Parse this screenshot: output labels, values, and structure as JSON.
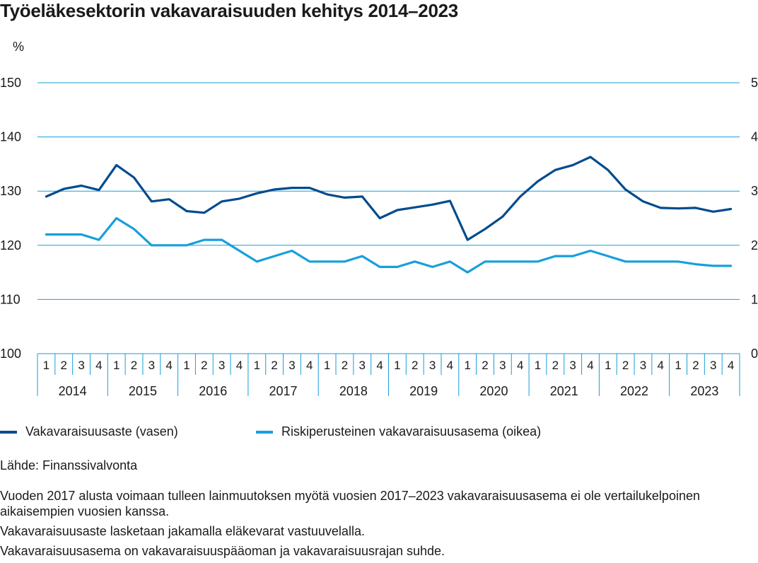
{
  "title": "Työeläkesektorin vakavaraisuuden kehitys 2014–2023",
  "legend": [
    {
      "label": "Vakavaraisuusaste (vasen)",
      "color": "#004b8d"
    },
    {
      "label": "Riskiperusteinen vakavaraisuusasema (oikea)",
      "color": "#179fdb"
    }
  ],
  "source": "Lähde: Finanssivalvonta",
  "notes": [
    "Vuoden 2017 alusta voimaan tulleen lainmuutoksen myötä vuosien 2017–2023 vakavaraisuusasema ei ole vertailukelpoinen aikaisempien vuosien kanssa.",
    "Vakavaraisuusaste lasketaan jakamalla eläkevarat vastuuvelalla.",
    "Vakavaraisuusasema on vakavaraisuuspääoman ja vakavaraisuusrajan suhde."
  ],
  "chart_data": {
    "type": "line",
    "title": "Työeläkesektorin vakavaraisuuden kehitys 2014–2023",
    "ylabel": "%",
    "ylim": [
      100,
      150
    ],
    "y_ticks": [
      100,
      110,
      120,
      130,
      140,
      150
    ],
    "y2lim": [
      0,
      5
    ],
    "y2_ticks": [
      0,
      1,
      2,
      3,
      4,
      5
    ],
    "grid": true,
    "legend_position": "bottom",
    "quarters": [
      "1",
      "2",
      "3",
      "4"
    ],
    "years": [
      "2014",
      "2015",
      "2016",
      "2017",
      "2018",
      "2019",
      "2020",
      "2021",
      "2022",
      "2023"
    ],
    "series": [
      {
        "name": "Vakavaraisuusaste (vasen)",
        "axis": "left",
        "color": "#004b8d",
        "values": [
          129.0,
          130.4,
          131.0,
          130.2,
          134.8,
          132.5,
          128.1,
          128.5,
          126.3,
          126.0,
          128.1,
          128.6,
          129.6,
          130.3,
          130.6,
          130.6,
          129.4,
          128.8,
          129.0,
          125.0,
          126.5,
          127.0,
          127.5,
          128.2,
          121.0,
          123.0,
          125.3,
          129.0,
          131.8,
          133.9,
          134.8,
          136.3,
          133.9,
          130.3,
          128.1,
          126.9,
          126.8,
          126.9,
          126.2,
          126.7
        ]
      },
      {
        "name": "Riskiperusteinen vakavaraisuusasema (oikea)",
        "axis": "right",
        "color": "#179fdb",
        "values": [
          2.2,
          2.2,
          2.2,
          2.1,
          2.5,
          2.3,
          2.0,
          2.0,
          2.0,
          2.1,
          2.1,
          1.9,
          1.7,
          1.8,
          1.9,
          1.7,
          1.7,
          1.7,
          1.8,
          1.6,
          1.6,
          1.7,
          1.6,
          1.7,
          1.5,
          1.7,
          1.7,
          1.7,
          1.7,
          1.8,
          1.8,
          1.9,
          1.8,
          1.7,
          1.7,
          1.7,
          1.7,
          1.65,
          1.62,
          1.62
        ]
      }
    ]
  }
}
